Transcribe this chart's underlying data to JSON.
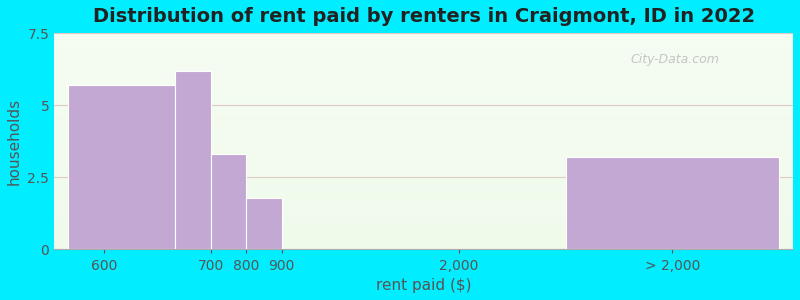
{
  "title": "Distribution of rent paid by renters in Craigmont, ID in 2022",
  "xlabel": "rent paid ($)",
  "ylabel": "households",
  "bar_color": "#c4a8d4",
  "bar_edgecolor": "#ffffff",
  "ylim": [
    0,
    7.5
  ],
  "yticks": [
    0,
    2.5,
    5,
    7.5
  ],
  "xtick_positions": [
    0.5,
    2.0,
    2.5,
    3.0,
    5.5,
    8.5
  ],
  "xtick_labels": [
    "600",
    "700",
    "800",
    "900",
    "2,000",
    "> 2,000"
  ],
  "bar_lefts": [
    0,
    1.5,
    2.0,
    2.5,
    4.0,
    7.0
  ],
  "bar_widths": [
    1.5,
    0.5,
    0.5,
    0.5,
    3.0,
    3.0
  ],
  "bar_heights": [
    5.7,
    6.2,
    3.3,
    1.8,
    0.0,
    3.2
  ],
  "background_outer": "#00eeff",
  "title_fontsize": 14,
  "label_fontsize": 11,
  "tick_fontsize": 10,
  "watermark": "City-Data.com",
  "xlim": [
    -0.2,
    10.2
  ]
}
